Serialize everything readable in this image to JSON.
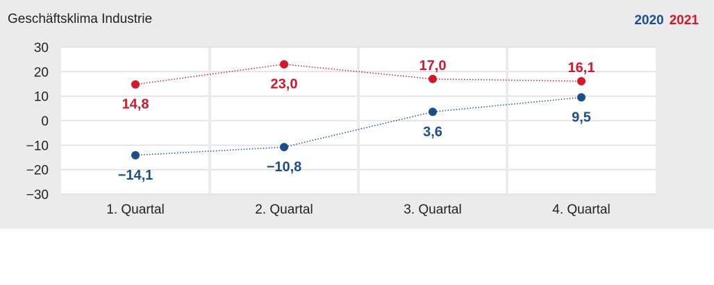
{
  "chart_data": {
    "type": "line",
    "title": "Geschäftsklima Industrie",
    "categories": [
      "1. Quartal",
      "2. Quartal",
      "3. Quartal",
      "4. Quartal"
    ],
    "series": [
      {
        "name": "2020",
        "color": "#1a4f8a",
        "values": [
          -14.1,
          -10.8,
          3.6,
          9.5
        ],
        "labels": [
          "−14,1",
          "−10,8",
          "3,6",
          "9,5"
        ]
      },
      {
        "name": "2021",
        "color": "#d6172a",
        "values": [
          14.8,
          23.0,
          17.0,
          16.1
        ],
        "labels": [
          "14,8",
          "23,0",
          "17,0",
          "16,1"
        ]
      }
    ],
    "y_ticks": [
      "30",
      "20",
      "10",
      "0",
      "-10",
      "-20",
      "-30"
    ],
    "ylim": [
      -30,
      30
    ],
    "xlabel": "",
    "ylabel": "",
    "grid": true,
    "legend_position": "top-right"
  }
}
